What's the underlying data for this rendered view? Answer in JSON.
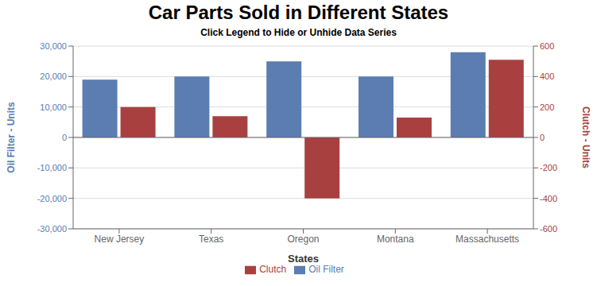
{
  "chart_data": {
    "type": "bar",
    "title": "Car Parts Sold in Different States",
    "subtitle": "Click Legend to Hide or Unhide Data Series",
    "xlabel": "States",
    "ylabel": "Oil Filter - Units",
    "y2label": "Clutch - Units",
    "categories": [
      "New Jersey",
      "Texas",
      "Oregon",
      "Montana",
      "Massachusetts"
    ],
    "series": [
      {
        "name": "Oil Filter",
        "color": "#5b7db1",
        "values": [
          19000,
          20000,
          25000,
          20000,
          28000
        ]
      },
      {
        "name": "Clutch",
        "color": "#a84040",
        "values": [
          200,
          140,
          -400,
          130,
          510
        ],
        "axis": "y2"
      }
    ],
    "ylim": [
      -30000,
      30000
    ],
    "yticks": [
      {
        "value": -30000,
        "label": "-30,000"
      },
      {
        "value": -20000,
        "label": "-20,000"
      },
      {
        "value": -10000,
        "label": "-10,000"
      },
      0,
      {
        "value": 10000,
        "label": "10,000"
      },
      {
        "value": 20000,
        "label": "20,000"
      },
      {
        "value": 30000,
        "label": "30,000"
      }
    ],
    "y2lim": [
      -600,
      600
    ],
    "y2ticks": [
      -600,
      -400,
      -200,
      0,
      200,
      400,
      600
    ],
    "grid": true,
    "legend": "bottom"
  }
}
